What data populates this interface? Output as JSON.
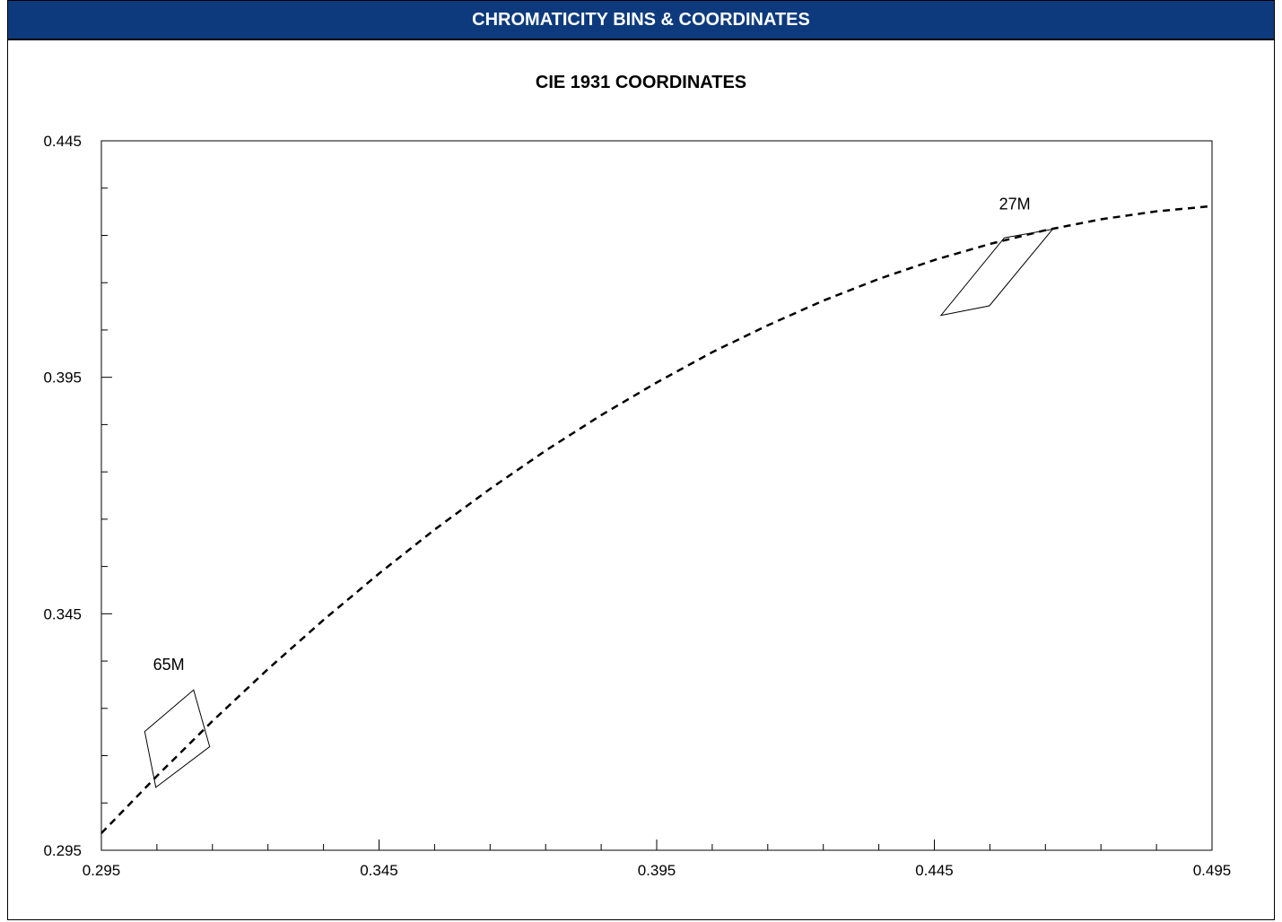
{
  "header": {
    "title": "CHROMATICITY BINS & COORDINATES"
  },
  "chart_data": {
    "type": "scatter",
    "title": "CIE 1931 COORDINATES",
    "xlabel": "",
    "ylabel": "",
    "xlim": [
      0.295,
      0.495
    ],
    "ylim": [
      0.295,
      0.445
    ],
    "x_ticks": [
      "0.295",
      "0.345",
      "0.395",
      "0.445",
      "0.495"
    ],
    "y_ticks": [
      "0.295",
      "0.345",
      "0.395",
      "0.445"
    ],
    "grid": false,
    "series": [
      {
        "style": "dashed-curve",
        "color": "#000000",
        "x": [
          0.295,
          0.305,
          0.315,
          0.325,
          0.335,
          0.345,
          0.355,
          0.365,
          0.375,
          0.385,
          0.395,
          0.405,
          0.415,
          0.425,
          0.435,
          0.445,
          0.455,
          0.465,
          0.475,
          0.485,
          0.495
        ],
        "y": [
          0.2986,
          0.3107,
          0.3223,
          0.3333,
          0.3437,
          0.3535,
          0.3628,
          0.3714,
          0.3795,
          0.387,
          0.3939,
          0.4003,
          0.406,
          0.4112,
          0.4158,
          0.4198,
          0.4232,
          0.4261,
          0.4284,
          0.4301,
          0.4312
        ]
      }
    ],
    "bins": [
      {
        "label": "65M",
        "x": [
          0.3028,
          0.3116,
          0.3145,
          0.3048
        ],
        "y": [
          0.3201,
          0.3289,
          0.3169,
          0.3083
        ]
      },
      {
        "label": "27M",
        "x": [
          0.4576,
          0.4663,
          0.4549,
          0.4462
        ],
        "y": [
          0.4245,
          0.4263,
          0.4101,
          0.4081
        ]
      }
    ]
  }
}
